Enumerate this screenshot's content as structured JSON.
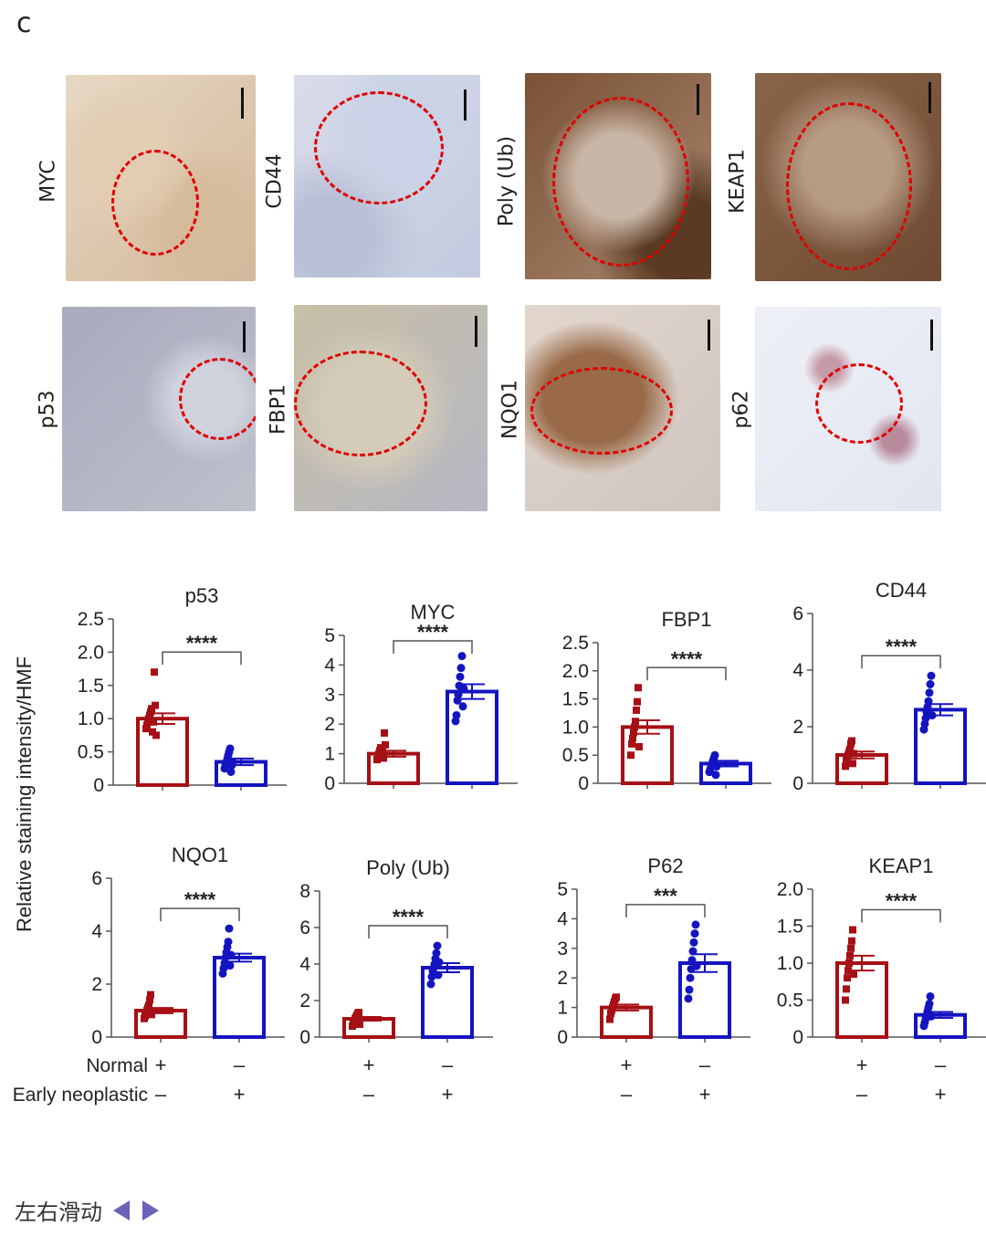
{
  "panel_letter": "c",
  "colors": {
    "normal": "#a61014",
    "neoplastic": "#1414c0",
    "circle": "#e00000"
  },
  "micrographs": [
    {
      "label": "MYC",
      "stain": "light"
    },
    {
      "label": "CD44",
      "stain": "blue"
    },
    {
      "label": "Poly (Ub)",
      "stain": "dark"
    },
    {
      "label": "KEAP1",
      "stain": "dark"
    },
    {
      "label": "p53",
      "stain": "grey"
    },
    {
      "label": "FBP1",
      "stain": "light"
    },
    {
      "label": "NQO1",
      "stain": "medium"
    },
    {
      "label": "p62",
      "stain": "pale"
    }
  ],
  "y_axis_label": "Relative staining intensity/HMF",
  "group_labels": {
    "normal": "Normal",
    "early": "Early neoplastic"
  },
  "group_signs": {
    "normal": [
      "+",
      "–"
    ],
    "early": [
      "–",
      "+"
    ]
  },
  "chart_data": [
    {
      "type": "bar",
      "title": "p53",
      "ylim": [
        0,
        2.5
      ],
      "ticks": [
        "0",
        "0.5",
        "1.0",
        "1.5",
        "2.0",
        "2.5"
      ],
      "tick_values": [
        0,
        0.5,
        1.0,
        1.5,
        2.0,
        2.5
      ],
      "categories": [
        "Normal",
        "Early neoplastic"
      ],
      "values": [
        1.0,
        0.35
      ],
      "errors": [
        0.08,
        0.05
      ],
      "significance": "****",
      "points": [
        [
          0.85,
          0.9,
          0.95,
          1.0,
          1.05,
          1.1,
          1.15,
          0.8,
          0.95,
          1.7,
          1.2,
          0.75
        ],
        [
          0.25,
          0.3,
          0.35,
          0.4,
          0.45,
          0.5,
          0.55,
          0.2,
          0.3,
          0.35
        ]
      ]
    },
    {
      "type": "bar",
      "title": "MYC",
      "ylim": [
        0,
        5
      ],
      "ticks": [
        "0",
        "1",
        "2",
        "3",
        "4",
        "5"
      ],
      "tick_values": [
        0,
        1,
        2,
        3,
        4,
        5
      ],
      "categories": [
        "Normal",
        "Early neoplastic"
      ],
      "values": [
        1.0,
        3.1
      ],
      "errors": [
        0.1,
        0.25
      ],
      "significance": "****",
      "points": [
        [
          0.8,
          0.9,
          1.0,
          1.1,
          1.2,
          0.95,
          1.05,
          0.85,
          1.7,
          1.3
        ],
        [
          2.1,
          2.3,
          2.8,
          3.0,
          3.3,
          3.6,
          3.9,
          4.3,
          2.6,
          3.2
        ]
      ]
    },
    {
      "type": "bar",
      "title": "FBP1",
      "ylim": [
        0,
        2.5
      ],
      "ticks": [
        "0",
        "0.5",
        "1.0",
        "1.5",
        "2.0",
        "2.5"
      ],
      "tick_values": [
        0,
        0.5,
        1.0,
        1.5,
        2.0,
        2.5
      ],
      "categories": [
        "Normal",
        "Early neoplastic"
      ],
      "values": [
        1.0,
        0.35
      ],
      "errors": [
        0.12,
        0.05
      ],
      "significance": "****",
      "points": [
        [
          0.5,
          0.7,
          0.8,
          0.9,
          1.0,
          1.1,
          1.3,
          1.45,
          1.7,
          0.65
        ],
        [
          0.2,
          0.25,
          0.3,
          0.35,
          0.4,
          0.45,
          0.5,
          0.15,
          0.3
        ]
      ]
    },
    {
      "type": "bar",
      "title": "CD44",
      "ylim": [
        0,
        6
      ],
      "ticks": [
        "0",
        "2",
        "4",
        "6"
      ],
      "tick_values": [
        0,
        2,
        4,
        6
      ],
      "categories": [
        "Normal",
        "Early neoplastic"
      ],
      "values": [
        1.0,
        2.6
      ],
      "errors": [
        0.12,
        0.2
      ],
      "significance": "****",
      "points": [
        [
          0.6,
          0.8,
          0.9,
          1.0,
          1.1,
          1.2,
          1.4,
          1.5,
          0.7,
          1.05
        ],
        [
          1.9,
          2.1,
          2.3,
          2.5,
          2.7,
          2.9,
          3.2,
          3.5,
          3.8,
          2.4
        ]
      ]
    },
    {
      "type": "bar",
      "title": "NQO1",
      "ylim": [
        0,
        6
      ],
      "ticks": [
        "0",
        "2",
        "4",
        "6"
      ],
      "tick_values": [
        0,
        2,
        4,
        6
      ],
      "categories": [
        "Normal",
        "Early neoplastic"
      ],
      "values": [
        1.0,
        3.0
      ],
      "errors": [
        0.1,
        0.15
      ],
      "significance": "****",
      "points": [
        [
          0.7,
          0.8,
          0.9,
          1.0,
          1.1,
          1.2,
          1.4,
          1.6,
          0.85
        ],
        [
          2.4,
          2.6,
          2.8,
          3.0,
          3.2,
          3.4,
          3.6,
          4.1,
          2.7,
          3.1
        ]
      ]
    },
    {
      "type": "bar",
      "title": "Poly (Ub)",
      "ylim": [
        0,
        8
      ],
      "ticks": [
        "0",
        "2",
        "4",
        "6",
        "8"
      ],
      "tick_values": [
        0,
        2,
        4,
        6,
        8
      ],
      "categories": [
        "Normal",
        "Early neoplastic"
      ],
      "values": [
        1.0,
        3.8
      ],
      "errors": [
        0.1,
        0.25
      ],
      "significance": "****",
      "points": [
        [
          0.6,
          0.8,
          0.9,
          1.0,
          1.1,
          1.2,
          1.3,
          1.35,
          0.7
        ],
        [
          2.9,
          3.3,
          3.6,
          3.8,
          4.0,
          4.3,
          4.6,
          5.0,
          3.4,
          4.1
        ]
      ]
    },
    {
      "type": "bar",
      "title": "P62",
      "ylim": [
        0,
        5
      ],
      "ticks": [
        "0",
        "1",
        "2",
        "3",
        "4",
        "5"
      ],
      "tick_values": [
        0,
        1,
        2,
        3,
        4,
        5
      ],
      "categories": [
        "Normal",
        "Early neoplastic"
      ],
      "values": [
        1.0,
        2.5
      ],
      "errors": [
        0.1,
        0.3
      ],
      "significance": "***",
      "points": [
        [
          0.6,
          0.8,
          0.9,
          1.0,
          1.1,
          1.2,
          1.3,
          1.35
        ],
        [
          1.3,
          1.6,
          2.0,
          2.3,
          2.6,
          2.9,
          3.2,
          3.5,
          3.8,
          2.4
        ]
      ]
    },
    {
      "type": "bar",
      "title": "KEAP1",
      "ylim": [
        0,
        2.0
      ],
      "ticks": [
        "0",
        "0.5",
        "1.0",
        "1.5",
        "2.0"
      ],
      "tick_values": [
        0,
        0.5,
        1.0,
        1.5,
        2.0
      ],
      "categories": [
        "Normal",
        "Early neoplastic"
      ],
      "values": [
        1.0,
        0.3
      ],
      "errors": [
        0.1,
        0.04
      ],
      "significance": "****",
      "points": [
        [
          0.5,
          0.65,
          0.8,
          0.9,
          1.0,
          1.1,
          1.2,
          1.3,
          1.45,
          0.85
        ],
        [
          0.15,
          0.2,
          0.25,
          0.3,
          0.35,
          0.4,
          0.45,
          0.55,
          0.28
        ]
      ]
    }
  ],
  "footer": {
    "text": "左右滑动"
  }
}
